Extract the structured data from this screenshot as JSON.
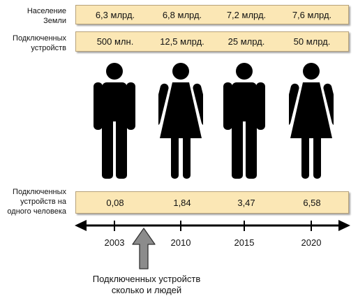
{
  "rows": {
    "population": {
      "label_lines": [
        "Население",
        "Земли"
      ],
      "values": [
        "6,3 млрд.",
        "6,8 млрд.",
        "7,2 млрд.",
        "7,6 млрд."
      ]
    },
    "devices": {
      "label_lines": [
        "Подключенных",
        "устройств"
      ],
      "values": [
        "500 млн.",
        "12,5 млрд.",
        "25 млрд.",
        "50 млрд."
      ]
    },
    "per_person": {
      "label_lines": [
        "Подключенных",
        "устройств на",
        "одного человека"
      ],
      "values": [
        "0,08",
        "1,84",
        "3,47",
        "6,58"
      ]
    }
  },
  "figures": [
    "man-icon",
    "woman-icon",
    "man-icon",
    "woman-icon"
  ],
  "timeline": {
    "years": [
      "2003",
      "2010",
      "2015",
      "2020"
    ],
    "marker_caption_lines": [
      "Подключенных устройств",
      "сколько и людей"
    ]
  },
  "colors": {
    "band_fill": "#fbe7b5",
    "band_border": "#b7a27a",
    "figure_fill": "#000000",
    "marker_arrow_fill": "#8c8c8c"
  }
}
